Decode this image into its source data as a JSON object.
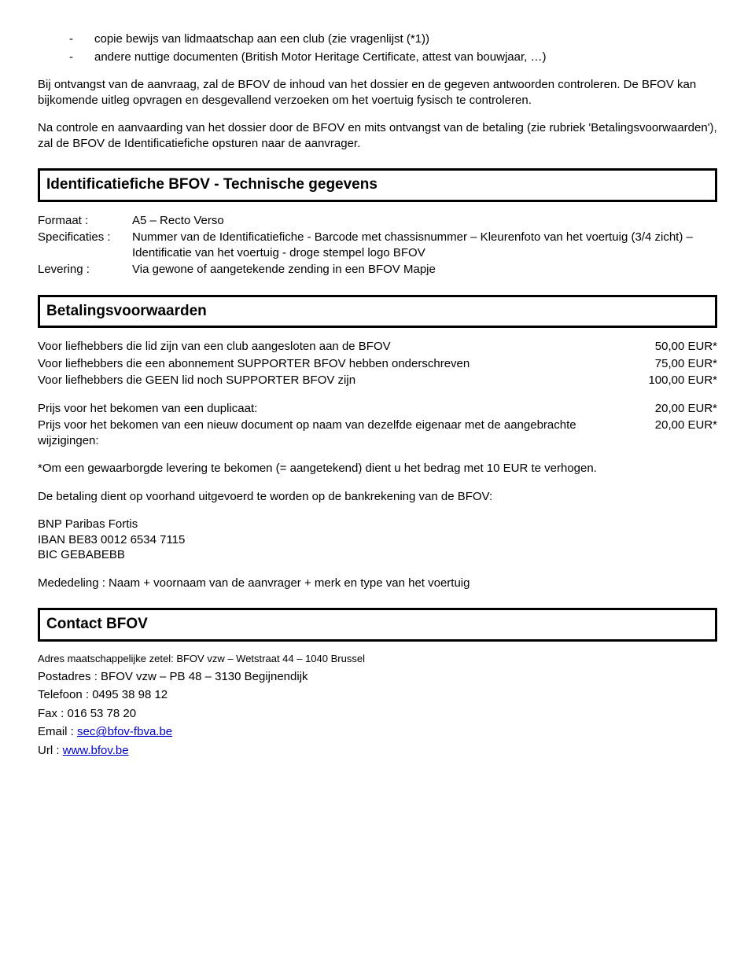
{
  "bullets": [
    "copie bewijs van lidmaatschap aan een club (zie vragenlijst (*1))",
    "andere nuttige documenten (British Motor Heritage Certificate, attest van bouwjaar, …)"
  ],
  "para1": "Bij ontvangst van de aanvraag, zal de BFOV de inhoud van het dossier en de gegeven antwoorden controleren. De BFOV kan bijkomende uitleg opvragen en desgevallend verzoeken om het voertuig fysisch te controleren.",
  "para2": "Na controle en aanvaarding van het dossier door de BFOV en mits ontvangst van de betaling (zie rubriek 'Betalingsvoorwaarden'), zal de BFOV de Identificatiefiche opsturen naar de aanvrager.",
  "section1_title": "Identificatiefiche BFOV - Technische gegevens",
  "specs": {
    "formaat_label": "Formaat :",
    "formaat_value": "A5 – Recto Verso",
    "specificaties_label": "Specificaties :",
    "specificaties_value": "Nummer van de Identificatiefiche - Barcode met chassisnummer – Kleurenfoto van het voertuig (3/4 zicht) – Identificatie van het voertuig - droge stempel logo BFOV",
    "levering_label": "Levering :",
    "levering_value": "Via gewone of aangetekende zending in een BFOV Mapje"
  },
  "section2_title": "Betalingsvoorwaarden",
  "prices1": [
    {
      "label": "Voor liefhebbers die lid zijn van een club aangesloten aan de BFOV",
      "value": "50,00 EUR*"
    },
    {
      "label": "Voor liefhebbers die een abonnement SUPPORTER BFOV hebben onderschreven",
      "value": "75,00 EUR*"
    },
    {
      "label": "Voor liefhebbers die GEEN lid noch SUPPORTER BFOV zijn",
      "value": "100,00 EUR*"
    }
  ],
  "prices2": [
    {
      "label": "Prijs voor het bekomen van een duplicaat:",
      "value": "20,00 EUR*"
    },
    {
      "label": "Prijs voor het bekomen van een nieuw document op naam van dezelfde eigenaar met de aangebrachte wijzigingen:",
      "value": "20,00 EUR*"
    }
  ],
  "note_asterisk": "*Om een gewaarborgde levering te bekomen (= aangetekend) dient u het bedrag met 10 EUR te verhogen.",
  "payment_line": "De betaling dient op voorhand uitgevoerd te worden op de bankrekening van de BFOV:",
  "bank": {
    "name": "BNP Paribas Fortis",
    "iban": "IBAN  BE83 0012 6534 7115",
    "bic": "BIC GEBABEBB"
  },
  "mededeling": "Mededeling : Naam + voornaam van de aanvrager + merk en type van het voertuig",
  "section3_title": "Contact BFOV",
  "contact": {
    "adres_zetel": "Adres maatschappelijke zetel: BFOV vzw – Wetstraat 44 – 1040 Brussel",
    "postadres": "Postadres : BFOV vzw – PB 48 – 3130 Begijnendijk",
    "telefoon": "Telefoon : 0495 38 98 12",
    "fax": "Fax : 016 53 78 20",
    "email_label": "Email : ",
    "email_link": "sec@bfov-fbva.be",
    "url_label": "Url : ",
    "url_link": "www.bfov.be"
  }
}
